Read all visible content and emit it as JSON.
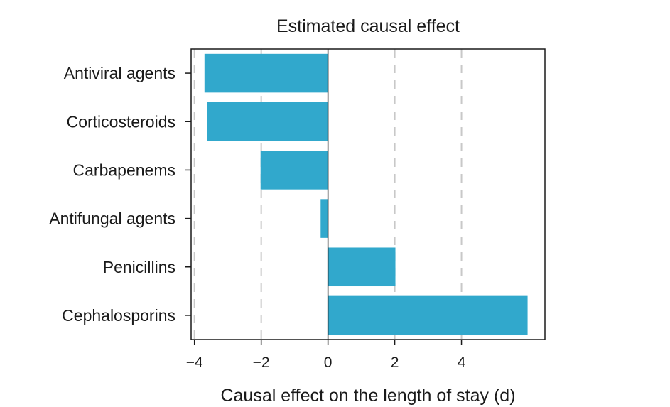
{
  "chart_data": {
    "type": "bar",
    "orientation": "horizontal",
    "title": "Estimated causal effect",
    "xlabel": "Causal effect on the length of stay (d)",
    "ylabel": "",
    "categories": [
      "Antiviral agents",
      "Corticosteroids",
      "Carbapenems",
      "Antifungal agents",
      "Penicillins",
      "Cephalosporins"
    ],
    "values": [
      -3.7,
      -3.63,
      -2.02,
      -0.22,
      2.02,
      5.98
    ],
    "xlim": [
      -4.1,
      6.5
    ],
    "xticks": [
      -4,
      -2,
      0,
      2,
      4
    ],
    "xtick_labels": [
      "−4",
      "−2",
      "0",
      "2",
      "4"
    ],
    "grid": "vertical dashed",
    "bar_color": "#31a8cc",
    "gridline_color": "#c8c8c8",
    "axis_color": "#1a1a1a"
  }
}
